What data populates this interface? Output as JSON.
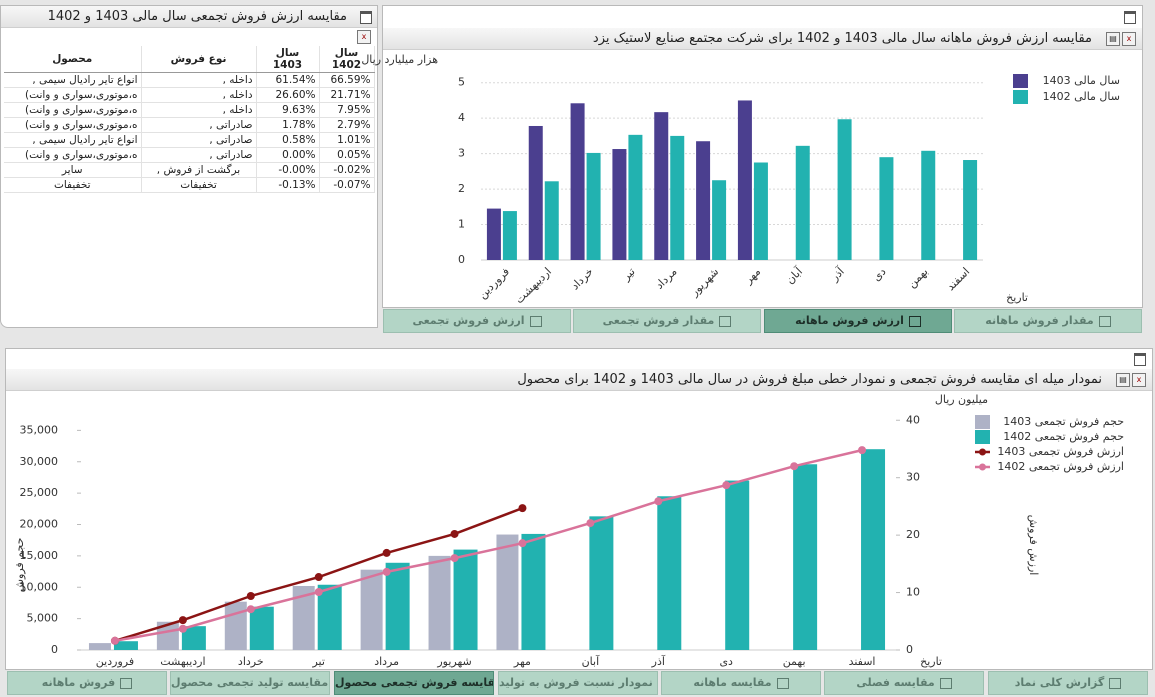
{
  "table_panel": {
    "title": "مقایسه ارزش فروش تجمعی سال مالی 1403 و 1402",
    "columns": [
      "محصول",
      "نوع فروش",
      "سال 1403",
      "سال 1402"
    ],
    "rows": [
      [
        "انواع تایر رادیال سیمی ,",
        "داخله ,",
        "61.54%",
        "66.59%"
      ],
      [
        "ه،موتوری،سواری و وانت)",
        "داخله ,",
        "26.60%",
        "21.71%"
      ],
      [
        "ه،موتوری،سواری و وانت)",
        "داخله ,",
        "9.63%",
        "7.95%"
      ],
      [
        "ه،موتوری،سواری و وانت)",
        "صادراتی ,",
        "1.78%",
        "2.79%"
      ],
      [
        "انواع تایر رادیال سیمی ,",
        "صادراتی ,",
        "0.58%",
        "1.01%"
      ],
      [
        "ه،موتوری،سواری و وانت)",
        "صادراتی ,",
        "0.00%",
        "0.05%"
      ],
      [
        "سایر",
        "برگشت از فروش ,",
        "-0.00%",
        "-0.02%"
      ],
      [
        "تخفیفات",
        "تخفیفات",
        "-0.13%",
        "-0.07%"
      ]
    ]
  },
  "tabs_top": [
    "ارزش فروش تجمعی",
    "مقدار فروش تجمعی",
    "ارزش فروش ماهانه",
    "مقدار فروش ماهانه"
  ],
  "tabs_bottom": [
    "فروش ماهانه",
    "مقایسه تولید تجمعی محصول",
    "مقایسه فروش تجمعی محصول",
    "نمودار نسبت فروش به تولید",
    "مقایسه ماهانه",
    "مقایسه فصلی",
    "گزارش کلی نماد"
  ],
  "chart_data": [
    {
      "type": "bar",
      "title": "مقایسه ارزش فروش ماهانه سال مالی 1403 و 1402 برای شرکت مجتمع صنایع لاستیک یزد",
      "y_label": "هزار میلیارد ریال",
      "x_label": "تاریخ",
      "categories": [
        "فروردین",
        "اردیبهشت",
        "خرداد",
        "تیر",
        "مرداد",
        "شهریور",
        "مهر",
        "آبان",
        "آذر",
        "دی",
        "بهمن",
        "اسفند"
      ],
      "series": [
        {
          "name": "سال مالی 1403",
          "color": "#4b3f8f",
          "values": [
            1.45,
            3.78,
            4.42,
            3.13,
            4.17,
            3.35,
            4.5,
            null,
            null,
            null,
            null,
            null
          ]
        },
        {
          "name": "سال مالی 1402",
          "color": "#22b2b0",
          "values": [
            1.38,
            2.22,
            3.02,
            3.53,
            3.5,
            2.25,
            2.75,
            3.22,
            3.97,
            2.9,
            3.08,
            2.82
          ]
        }
      ],
      "ylim": [
        0,
        5.5
      ],
      "yticks": [
        0,
        1,
        2,
        3,
        4,
        5
      ],
      "grid": true,
      "legend": "top-right"
    },
    {
      "type": "combo",
      "title": "نمودار میله ای مقایسه فروش تجمعی و نمودار خطی مبلغ فروش در سال مالی 1403 و 1402 برای محصول",
      "y_label": "حجم فروش",
      "y2_label": "ارزش فروش",
      "y2_unit": "میلیون ریال",
      "x_label": "تاریخ",
      "categories": [
        "فروردین",
        "اردیبهشت",
        "خرداد",
        "تیر",
        "مرداد",
        "شهریور",
        "مهر",
        "آبان",
        "آذر",
        "دی",
        "بهمن",
        "اسفند"
      ],
      "series": [
        {
          "name": "حجم فروش تجمعی 1403",
          "kind": "bar",
          "color": "#aeb2c6",
          "values": [
            1100,
            4500,
            7700,
            10200,
            12800,
            15000,
            18400,
            null,
            null,
            null,
            null,
            null
          ]
        },
        {
          "name": "حجم فروش تجمعی 1402",
          "kind": "bar",
          "color": "#22b2b0",
          "values": [
            1400,
            3800,
            6900,
            10400,
            13900,
            16000,
            18500,
            21300,
            24500,
            27000,
            29600,
            32000
          ]
        },
        {
          "name": "ارزش فروش تجمعی 1403",
          "kind": "line",
          "axis": "y2",
          "color": "#8b1414",
          "values": [
            1.6,
            5.2,
            9.4,
            12.7,
            16.9,
            20.2,
            24.7,
            null,
            null,
            null,
            null,
            null
          ]
        },
        {
          "name": "ارزش فروش تجمعی 1402",
          "kind": "line",
          "axis": "y2",
          "color": "#d9739a",
          "values": [
            1.6,
            3.7,
            7.1,
            10.1,
            13.6,
            16.0,
            18.6,
            22.1,
            25.9,
            28.7,
            32.0,
            34.8
          ]
        }
      ],
      "ylim": [
        0,
        40000
      ],
      "yticks": [
        0,
        {
          "value": 5000,
          "label": "5,000"
        },
        {
          "value": 10000,
          "label": "10,000"
        },
        {
          "value": 15000,
          "label": "15,000"
        },
        {
          "value": 20000,
          "label": "20,000"
        },
        {
          "value": 25000,
          "label": "25,000"
        },
        {
          "value": 30000,
          "label": "30,000"
        },
        {
          "value": 35000,
          "label": "35,000"
        }
      ],
      "y2lim": [
        0,
        43.7
      ],
      "y2ticks": [
        0,
        10,
        20,
        30,
        40
      ],
      "grid": false,
      "legend": "top-right"
    }
  ]
}
